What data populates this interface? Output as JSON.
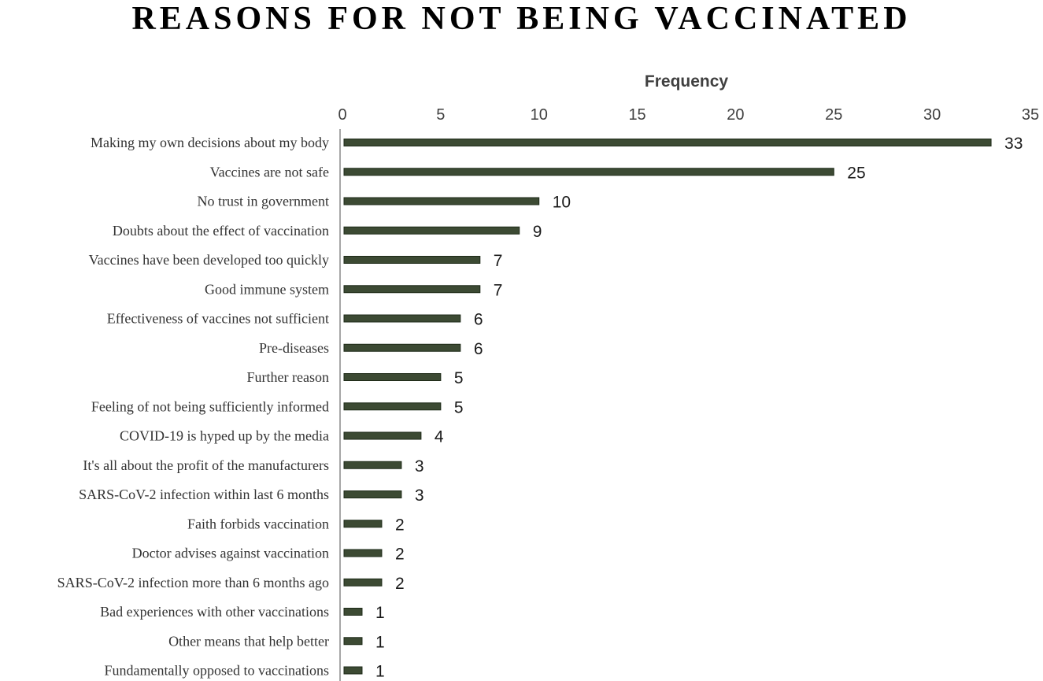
{
  "chart_data": {
    "type": "bar",
    "orientation": "horizontal",
    "title": "REASONS FOR NOT BEING VACCINATED",
    "xlabel": "Frequency",
    "ylabel": "",
    "xlim": [
      0,
      35
    ],
    "xticks": [
      0,
      5,
      10,
      15,
      20,
      25,
      30,
      35
    ],
    "axis_position": "top",
    "grid": false,
    "legend": "none",
    "bar_color": "#3c4a33",
    "categories": [
      "Making my own decisions about my body",
      "Vaccines are not safe",
      "No trust in government",
      "Doubts about the effect of vaccination",
      "Vaccines have been developed too quickly",
      "Good immune system",
      "Effectiveness of vaccines not sufficient",
      "Pre-diseases",
      "Further reason",
      "Feeling of not being sufficiently informed",
      "COVID-19 is hyped up by the media",
      "It's all about the profit of the manufacturers",
      "SARS-CoV-2 infection within last 6 months",
      "Faith forbids vaccination",
      "Doctor advises against vaccination",
      "SARS-CoV-2 infection more than 6 months ago",
      "Bad experiences with other vaccinations",
      "Other means that help better",
      "Fundamentally opposed to vaccinations"
    ],
    "values": [
      33,
      25,
      10,
      9,
      7,
      7,
      6,
      6,
      5,
      5,
      4,
      3,
      3,
      2,
      2,
      2,
      1,
      1,
      1
    ]
  }
}
